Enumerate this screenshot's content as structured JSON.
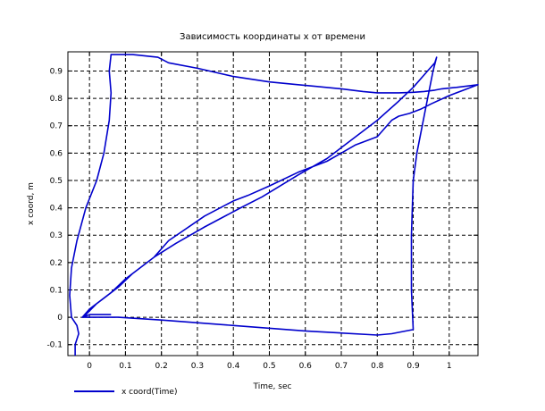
{
  "chart_data": {
    "type": "line",
    "title": "Зависимость координаты х от времени",
    "xlabel": "Time, sec",
    "ylabel": "x coord, m",
    "xlim": [
      -0.06,
      1.08
    ],
    "ylim": [
      -0.14,
      0.97
    ],
    "xticks": [
      0,
      0.1,
      0.2,
      0.3,
      0.4,
      0.5,
      0.6,
      0.7,
      0.8,
      0.9,
      1
    ],
    "xtick_labels": [
      "0",
      "0.1",
      "0.2",
      "0.3",
      "0.4",
      "0.5",
      "0.6",
      "0.7",
      "0.8",
      "0.9",
      "1"
    ],
    "yticks": [
      -0.1,
      0,
      0.1,
      0.2,
      0.3,
      0.4,
      0.5,
      0.6,
      0.7,
      0.8,
      0.9
    ],
    "ytick_labels": [
      "-0.1",
      "0",
      "0.1",
      "0.2",
      "0.3",
      "0.4",
      "0.5",
      "0.6",
      "0.7",
      "0.8",
      "0.9"
    ],
    "grid": true,
    "legend_position": "bottom-left",
    "series": [
      {
        "name": "x coord(Time)",
        "color": "#0000cc",
        "x": [
          -0.04,
          -0.04,
          -0.03,
          -0.035,
          -0.05,
          -0.055,
          -0.05,
          -0.035,
          -0.01,
          0.02,
          0.04,
          0.055,
          0.06,
          0.055,
          0.06,
          0.12,
          0.19,
          0.22,
          0.3,
          0.4,
          0.5,
          0.58,
          0.62,
          0.7,
          0.76,
          0.8,
          0.86,
          0.9,
          0.93,
          0.96,
          0.98,
          1.02,
          1.05,
          1.08,
          1.05,
          1.0,
          0.95,
          0.92,
          0.89,
          0.86,
          0.84,
          0.8,
          0.74,
          0.7,
          0.66,
          0.62,
          0.58,
          0.5,
          0.44,
          0.4,
          0.32,
          0.22,
          0.18,
          0.12,
          0.08,
          0.04,
          0.02,
          -0.01,
          -0.02,
          0.02,
          0.08,
          0.2,
          0.4,
          0.6,
          0.8,
          0.84,
          0.88,
          0.9,
          0.895,
          0.895,
          0.9,
          0.91,
          0.925,
          0.94,
          0.955,
          0.965,
          0.96,
          0.94,
          0.9,
          0.86,
          0.8,
          0.74,
          0.66,
          0.58,
          0.48,
          0.42,
          0.32,
          0.24,
          0.18,
          0.1,
          0.06,
          0.0,
          -0.02,
          0.0,
          0.06
        ],
        "y": [
          -0.14,
          -0.1,
          -0.06,
          -0.03,
          0.0,
          0.08,
          0.18,
          0.28,
          0.4,
          0.5,
          0.6,
          0.72,
          0.82,
          0.9,
          0.96,
          0.96,
          0.95,
          0.93,
          0.91,
          0.88,
          0.86,
          0.85,
          0.845,
          0.835,
          0.825,
          0.82,
          0.82,
          0.822,
          0.825,
          0.83,
          0.835,
          0.84,
          0.845,
          0.85,
          0.835,
          0.81,
          0.78,
          0.76,
          0.745,
          0.735,
          0.72,
          0.66,
          0.63,
          0.6,
          0.57,
          0.55,
          0.53,
          0.48,
          0.445,
          0.425,
          0.37,
          0.28,
          0.22,
          0.16,
          0.11,
          0.07,
          0.05,
          0.01,
          0.0,
          0.0,
          0.0,
          -0.01,
          -0.03,
          -0.05,
          -0.065,
          -0.06,
          -0.05,
          -0.045,
          0.1,
          0.3,
          0.5,
          0.6,
          0.7,
          0.8,
          0.9,
          0.95,
          0.93,
          0.9,
          0.84,
          0.79,
          0.72,
          0.66,
          0.58,
          0.52,
          0.44,
          0.4,
          0.33,
          0.27,
          0.22,
          0.14,
          0.09,
          0.03,
          0.0,
          0.01,
          0.01
        ]
      }
    ]
  }
}
